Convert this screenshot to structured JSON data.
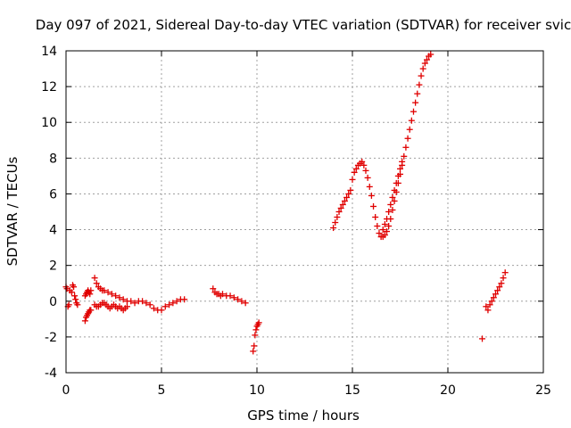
{
  "chart_data": {
    "type": "scatter",
    "title": "Day 097 of 2021, Sidereal Day-to-day VTEC variation (SDTVAR) for receiver svic",
    "xlabel": "GPS time / hours",
    "ylabel": "SDTVAR / TECUs",
    "xlim": [
      0,
      25
    ],
    "ylim": [
      -4,
      14
    ],
    "xticks": [
      "0",
      "5",
      "10",
      "15",
      "20",
      "25"
    ],
    "yticks": [
      "-4",
      "-2",
      "0",
      "2",
      "4",
      "6",
      "8",
      "10",
      "12",
      "14"
    ],
    "grid": true,
    "marker": "+",
    "color": "#e00000",
    "series": [
      {
        "x": [
          0.0,
          0.05,
          0.1,
          0.15,
          0.2,
          0.3,
          0.35,
          0.4,
          0.45,
          0.5,
          0.55,
          0.6,
          1.0,
          1.05,
          1.1,
          1.15,
          1.2,
          1.25,
          1.3,
          1.0,
          1.05,
          1.1,
          1.15,
          1.2,
          1.25,
          1.3,
          1.5,
          1.6,
          1.7,
          1.8,
          1.9,
          2.0,
          2.2,
          2.4,
          2.6,
          2.8,
          3.0,
          3.2,
          3.4,
          3.6,
          3.8,
          4.0,
          4.2,
          4.4,
          4.6,
          4.8,
          5.0,
          5.2,
          5.4,
          5.6,
          5.8,
          6.0,
          6.2,
          1.5,
          1.6,
          1.7,
          1.8,
          1.9,
          2.0,
          2.1,
          2.2,
          2.3,
          2.4,
          2.5,
          2.6,
          2.7,
          2.8,
          2.9,
          3.0,
          3.1,
          3.2,
          7.7,
          7.8,
          7.9,
          8.0,
          8.1,
          8.2,
          8.4,
          8.6,
          8.8,
          9.0,
          9.2,
          9.4,
          9.8,
          9.85,
          9.9,
          9.95,
          10.0,
          10.05,
          10.1,
          14.0,
          14.1,
          14.2,
          14.3,
          14.4,
          14.5,
          14.6,
          14.7,
          14.8,
          14.9,
          15.0,
          15.1,
          15.2,
          15.3,
          15.4,
          15.5,
          15.6,
          15.7,
          15.8,
          15.9,
          16.0,
          16.1,
          16.2,
          16.3,
          16.4,
          16.5,
          16.6,
          16.7,
          16.8,
          16.9,
          17.0,
          17.1,
          17.2,
          17.3,
          17.4,
          17.5,
          17.6,
          17.7,
          17.8,
          17.9,
          18.0,
          18.1,
          18.2,
          18.3,
          18.4,
          18.5,
          18.6,
          18.7,
          18.8,
          18.9,
          19.0,
          19.1,
          16.6,
          16.7,
          16.8,
          16.9,
          17.0,
          17.1,
          17.2,
          17.3,
          17.4,
          17.5,
          17.6,
          21.8,
          22.0,
          22.1,
          22.2,
          22.3,
          22.4,
          22.5,
          22.6,
          22.7,
          22.8,
          22.9,
          23.0
        ],
        "y": [
          0.8,
          0.7,
          -0.3,
          -0.2,
          0.6,
          0.5,
          0.9,
          0.8,
          0.3,
          0.1,
          -0.1,
          -0.2,
          -1.1,
          -0.9,
          -0.8,
          -0.7,
          -0.6,
          -0.5,
          -0.5,
          0.3,
          0.4,
          0.5,
          0.6,
          0.5,
          0.4,
          0.6,
          1.3,
          1.0,
          0.8,
          0.7,
          0.6,
          0.6,
          0.5,
          0.4,
          0.3,
          0.2,
          0.1,
          0.0,
          0.0,
          -0.1,
          0.0,
          0.0,
          -0.1,
          -0.2,
          -0.4,
          -0.5,
          -0.5,
          -0.3,
          -0.2,
          -0.1,
          0.0,
          0.1,
          0.1,
          -0.2,
          -0.3,
          -0.3,
          -0.2,
          -0.1,
          -0.1,
          -0.2,
          -0.3,
          -0.4,
          -0.3,
          -0.2,
          -0.3,
          -0.4,
          -0.3,
          -0.4,
          -0.5,
          -0.4,
          -0.3,
          0.7,
          0.5,
          0.4,
          0.4,
          0.3,
          0.4,
          0.3,
          0.3,
          0.2,
          0.1,
          0.0,
          -0.1,
          -2.8,
          -2.5,
          -1.9,
          -1.6,
          -1.4,
          -1.3,
          -1.2,
          4.1,
          4.4,
          4.7,
          5.0,
          5.2,
          5.4,
          5.6,
          5.8,
          6.0,
          6.2,
          6.8,
          7.2,
          7.4,
          7.6,
          7.7,
          7.8,
          7.6,
          7.3,
          6.9,
          6.4,
          5.9,
          5.3,
          4.7,
          4.2,
          3.8,
          3.6,
          3.6,
          3.7,
          3.9,
          4.2,
          4.6,
          5.1,
          5.6,
          6.1,
          6.6,
          7.1,
          7.6,
          8.1,
          8.6,
          9.1,
          9.6,
          10.1,
          10.6,
          11.1,
          11.6,
          12.1,
          12.6,
          13.0,
          13.3,
          13.5,
          13.7,
          13.8,
          4.0,
          4.3,
          4.6,
          5.0,
          5.4,
          5.8,
          6.2,
          6.6,
          7.0,
          7.4,
          7.8,
          -2.1,
          -0.3,
          -0.5,
          -0.2,
          0.0,
          0.2,
          0.4,
          0.6,
          0.8,
          1.0,
          1.3,
          1.6
        ]
      }
    ]
  }
}
